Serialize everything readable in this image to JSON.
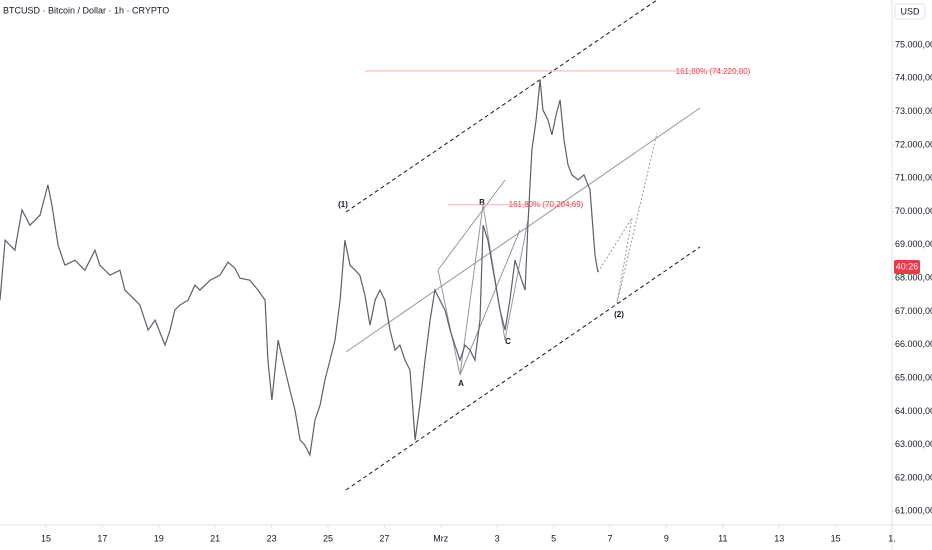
{
  "header": {
    "symbol": "BTCUSD · Bitcoin / Dollar · 1h · CRYPTO",
    "currency": "USD",
    "price_tag": "40:26"
  },
  "annotations": {
    "w1": "(1)",
    "w2": "(2)",
    "a": "A",
    "b": "B",
    "c": "C",
    "fib_top": "161,80% (74.220,80)",
    "fib_mid": "161,80% (70.204,69)"
  },
  "fib_levels": [
    74220.8,
    70204.69
  ],
  "chart_data": {
    "type": "line",
    "color": "#5d606b",
    "x": [
      -1.63,
      -1.45,
      -1.1,
      -0.85,
      -0.57,
      -0.21,
      0.07,
      0.21,
      0.43,
      0.67,
      1.03,
      1.38,
      1.74,
      1.91,
      2.27,
      2.62,
      2.8,
      3.16,
      3.33,
      3.62,
      3.87,
      4.22,
      4.4,
      4.57,
      4.75,
      5.04,
      5.28,
      5.46,
      5.82,
      6.17,
      6.45,
      6.7,
      6.88,
      7.23,
      7.52,
      7.77,
      7.87,
      8.01,
      8.23,
      8.48,
      8.65,
      8.83,
      9.01,
      9.18,
      9.36,
      9.54,
      9.72,
      9.89,
      10.07,
      10.25,
      10.43,
      10.6,
      10.78,
      10.96,
      11.13,
      11.31,
      11.49,
      11.67,
      11.84,
      12.02,
      12.2,
      12.38,
      12.55,
      12.73,
      12.91,
      13.09,
      13.26,
      13.44,
      13.62,
      13.79,
      13.97,
      14.15,
      14.33,
      14.5,
      14.68,
      14.86,
      15.04,
      15.21,
      15.39,
      15.5,
      15.67,
      15.92,
      16.1,
      16.28,
      16.45,
      16.63,
      16.81,
      16.99,
      17.09,
      17.23,
      17.38,
      17.52,
      17.62,
      17.8,
      17.94,
      18.09,
      18.23,
      18.37,
      18.51,
      18.65,
      18.87,
      19.08,
      19.29,
      19.47,
      19.57
    ],
    "values": [
      67340,
      69140,
      68840,
      70050,
      69590,
      69890,
      70800,
      70200,
      68990,
      68390,
      68540,
      68240,
      68840,
      68390,
      68090,
      68240,
      67640,
      67340,
      67190,
      66440,
      66740,
      65990,
      66440,
      67040,
      67190,
      67340,
      67790,
      67640,
      67940,
      68090,
      68480,
      68300,
      68000,
      67940,
      67640,
      67340,
      65540,
      64340,
      66140,
      65240,
      64640,
      64040,
      63140,
      62990,
      62690,
      63740,
      64190,
      64940,
      65540,
      66140,
      67340,
      69140,
      68390,
      68240,
      68090,
      67490,
      66590,
      67340,
      67640,
      67340,
      66440,
      65840,
      65990,
      65540,
      65240,
      63140,
      64190,
      65540,
      66740,
      67640,
      67340,
      67040,
      66440,
      65990,
      65540,
      65990,
      65840,
      65540,
      66740,
      69590,
      69140,
      67940,
      67040,
      66440,
      67340,
      68540,
      68090,
      67640,
      69590,
      71850,
      72750,
      73950,
      73050,
      72750,
      72300,
      72900,
      73350,
      72150,
      71400,
      71100,
      70950,
      71100,
      70650,
      68690,
      68180
    ],
    "xlim": [
      -1.63,
      30.0
    ],
    "ylim": [
      60590,
      76350
    ],
    "xticks": [
      {
        "value": 0,
        "label": "15"
      },
      {
        "value": 2,
        "label": "17"
      },
      {
        "value": 4,
        "label": "19"
      },
      {
        "value": 6,
        "label": "21"
      },
      {
        "value": 8,
        "label": "23"
      },
      {
        "value": 10,
        "label": "25"
      },
      {
        "value": 12,
        "label": "27"
      },
      {
        "value": 14,
        "label": "Mrz"
      },
      {
        "value": 16,
        "label": "3"
      },
      {
        "value": 18,
        "label": "5"
      },
      {
        "value": 20,
        "label": "7"
      },
      {
        "value": 22,
        "label": "9"
      },
      {
        "value": 24,
        "label": "11"
      },
      {
        "value": 26,
        "label": "13"
      },
      {
        "value": 28,
        "label": "15"
      },
      {
        "value": 30,
        "label": "1."
      }
    ],
    "yticks": [
      {
        "value": 61000,
        "label": "61.000,00"
      },
      {
        "value": 62000,
        "label": "62.000,00"
      },
      {
        "value": 63000,
        "label": "63.000,00"
      },
      {
        "value": 64000,
        "label": "64.000,00"
      },
      {
        "value": 65000,
        "label": "65.000,00"
      },
      {
        "value": 66000,
        "label": "66.000,00"
      },
      {
        "value": 67000,
        "label": "67.000,00"
      },
      {
        "value": 68000,
        "label": "68.000,00"
      },
      {
        "value": 69000,
        "label": "69.000,00"
      },
      {
        "value": 70000,
        "label": "70.000,00"
      },
      {
        "value": 71000,
        "label": "71.000,00"
      },
      {
        "value": 72000,
        "label": "72.000,00"
      },
      {
        "value": 73000,
        "label": "73.000,00"
      },
      {
        "value": 74000,
        "label": "74.000,00"
      },
      {
        "value": 75000,
        "label": "75.000,00"
      }
    ]
  }
}
